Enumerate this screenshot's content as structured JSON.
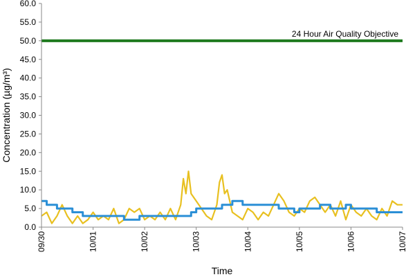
{
  "chart_data": {
    "type": "line",
    "title": "",
    "xlabel": "Time",
    "ylabel": "Concentration (µg/m³)",
    "ylim": [
      0,
      60
    ],
    "y_ticks": [
      "0.0",
      "5.0",
      "10.0",
      "15.0",
      "20.0",
      "25.0",
      "30.0",
      "35.0",
      "40.0",
      "45.0",
      "50.0",
      "55.0",
      "60.0"
    ],
    "x_ticks": [
      "09/30",
      "10/01",
      "10/02",
      "10/03",
      "10/04",
      "10/05",
      "10/06",
      "10/07"
    ],
    "grid": false,
    "legend": "none",
    "objective": {
      "value": 50,
      "label": "24 Hour Air Quality Objective",
      "color": "#1e7a1e"
    },
    "series": [
      {
        "color": "#e8c020",
        "x_days": [
          0,
          0.1,
          0.2,
          0.3,
          0.4,
          0.5,
          0.6,
          0.7,
          0.8,
          0.9,
          1.0,
          1.1,
          1.2,
          1.3,
          1.4,
          1.5,
          1.6,
          1.7,
          1.8,
          1.9,
          2.0,
          2.1,
          2.2,
          2.3,
          2.4,
          2.5,
          2.6,
          2.7,
          2.75,
          2.8,
          2.85,
          2.9,
          3.0,
          3.1,
          3.2,
          3.3,
          3.4,
          3.45,
          3.5,
          3.55,
          3.6,
          3.7,
          3.8,
          3.9,
          4.0,
          4.1,
          4.2,
          4.3,
          4.4,
          4.5,
          4.6,
          4.7,
          4.8,
          4.9,
          5.0,
          5.1,
          5.2,
          5.3,
          5.4,
          5.5,
          5.6,
          5.7,
          5.8,
          5.9,
          6.0,
          6.1,
          6.2,
          6.3,
          6.4,
          6.5,
          6.6,
          6.7,
          6.8,
          6.9,
          7.0
        ],
        "values": [
          3,
          4,
          1,
          3,
          6,
          3,
          1,
          3,
          1,
          2,
          4,
          2,
          3,
          2,
          5,
          1,
          2,
          5,
          4,
          5,
          2,
          3,
          2,
          4,
          2,
          5,
          2,
          6,
          13,
          9,
          15,
          9,
          7,
          5,
          3,
          2,
          6,
          12,
          14,
          9,
          10,
          4,
          3,
          2,
          5,
          4,
          2,
          4,
          3,
          6,
          9,
          7,
          4,
          3,
          5,
          4,
          7,
          8,
          6,
          4,
          6,
          3,
          7,
          2,
          6,
          4,
          3,
          5,
          3,
          2,
          5,
          3,
          7,
          6,
          6
        ]
      },
      {
        "color": "#2b8fd6",
        "x_days": [
          0,
          0.1,
          0.1,
          0.3,
          0.3,
          0.6,
          0.6,
          0.8,
          0.8,
          1.6,
          1.6,
          1.9,
          1.9,
          2.5,
          2.5,
          2.9,
          2.9,
          3.0,
          3.0,
          3.2,
          3.2,
          3.5,
          3.5,
          3.7,
          3.7,
          3.9,
          3.9,
          4.6,
          4.6,
          4.9,
          4.9,
          5.0,
          5.0,
          5.4,
          5.4,
          5.6,
          5.6,
          5.9,
          5.9,
          6.0,
          6.0,
          6.5,
          6.5,
          6.6,
          6.6,
          7.0
        ],
        "values": [
          7,
          7,
          6,
          6,
          5,
          5,
          4,
          4,
          3,
          3,
          2,
          2,
          3,
          3,
          3,
          3,
          4,
          4,
          5,
          5,
          5,
          5,
          6,
          6,
          7,
          7,
          6,
          6,
          5,
          5,
          4,
          4,
          5,
          5,
          6,
          6,
          5,
          5,
          6,
          6,
          5,
          5,
          4,
          4,
          4,
          4
        ]
      }
    ]
  }
}
